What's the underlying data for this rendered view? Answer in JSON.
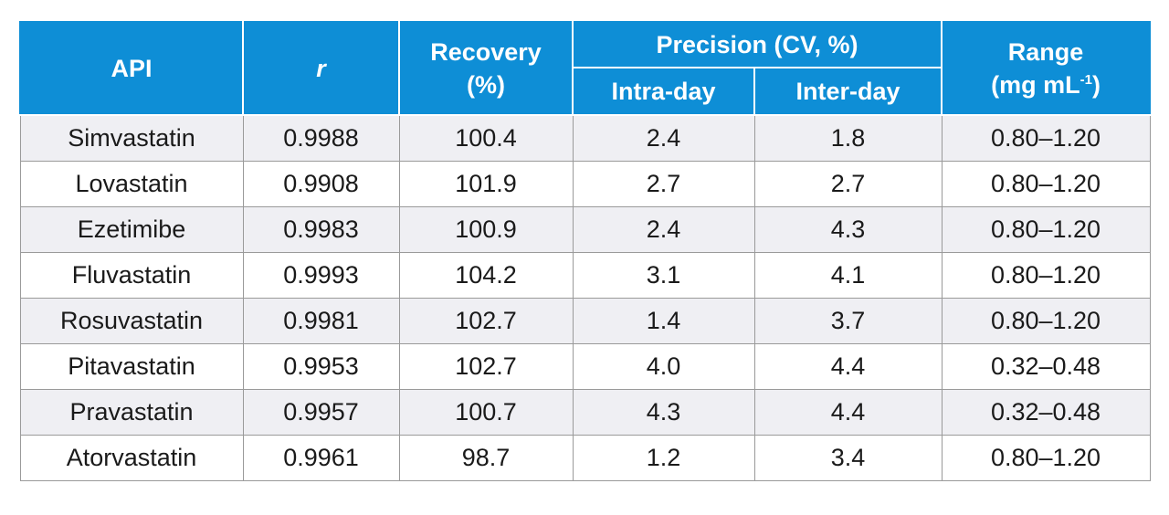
{
  "headers": {
    "api": "API",
    "r": "r",
    "recovery_line1": "Recovery",
    "recovery_line2": "(%)",
    "precision": "Precision (CV, %)",
    "intra_day": "Intra-day",
    "inter_day": "Inter-day",
    "range_line1": "Range",
    "range_line2_pre": "(mg mL",
    "range_line2_sup": "-1",
    "range_line2_post": ")"
  },
  "rows": [
    {
      "api": "Simvastatin",
      "r": "0.9988",
      "recovery": "100.4",
      "intra": "2.4",
      "inter": "1.8",
      "range": "0.80–1.20"
    },
    {
      "api": "Lovastatin",
      "r": "0.9908",
      "recovery": "101.9",
      "intra": "2.7",
      "inter": "2.7",
      "range": "0.80–1.20"
    },
    {
      "api": "Ezetimibe",
      "r": "0.9983",
      "recovery": "100.9",
      "intra": "2.4",
      "inter": "4.3",
      "range": "0.80–1.20"
    },
    {
      "api": "Fluvastatin",
      "r": "0.9993",
      "recovery": "104.2",
      "intra": "3.1",
      "inter": "4.1",
      "range": "0.80–1.20"
    },
    {
      "api": "Rosuvastatin",
      "r": "0.9981",
      "recovery": "102.7",
      "intra": "1.4",
      "inter": "3.7",
      "range": "0.80–1.20"
    },
    {
      "api": "Pitavastatin",
      "r": "0.9953",
      "recovery": "102.7",
      "intra": "4.0",
      "inter": "4.4",
      "range": "0.32–0.48"
    },
    {
      "api": "Pravastatin",
      "r": "0.9957",
      "recovery": "100.7",
      "intra": "4.3",
      "inter": "4.4",
      "range": "0.32–0.48"
    },
    {
      "api": "Atorvastatin",
      "r": "0.9961",
      "recovery": "98.7",
      "intra": "1.2",
      "inter": "3.4",
      "range": "0.80–1.20"
    }
  ]
}
